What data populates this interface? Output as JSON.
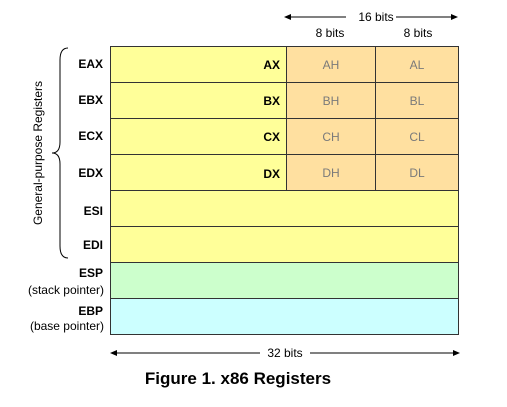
{
  "top": {
    "span_label": "16 bits",
    "byte_labels": [
      "8 bits",
      "8 bits"
    ]
  },
  "bracket_label": "General-purpose Registers",
  "registers": [
    {
      "name": "EAX",
      "word": "AX",
      "high": "AH",
      "low": "AL"
    },
    {
      "name": "EBX",
      "word": "BX",
      "high": "BH",
      "low": "BL"
    },
    {
      "name": "ECX",
      "word": "CX",
      "high": "CH",
      "low": "CL"
    },
    {
      "name": "EDX",
      "word": "DX",
      "high": "DH",
      "low": "DL"
    },
    {
      "name": "ESI"
    },
    {
      "name": "EDI"
    },
    {
      "name": "ESP",
      "desc": "(stack pointer)"
    },
    {
      "name": "EBP",
      "desc": "(base pointer)"
    }
  ],
  "bottom": {
    "span_label": "32 bits"
  },
  "caption": "Figure 1. x86 Registers",
  "colors": {
    "general": "#ffff99",
    "byte_cells": "#ffe0a0",
    "esp": "#ccffcc",
    "ebp": "#ccffff"
  }
}
